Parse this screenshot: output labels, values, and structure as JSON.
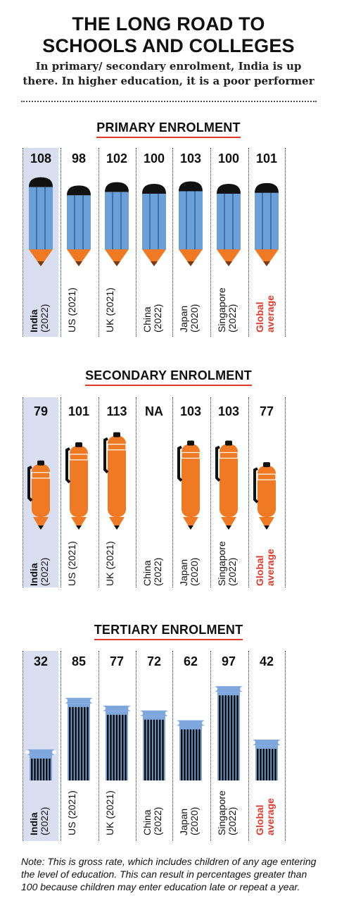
{
  "header": {
    "title_line1": "THE LONG ROAD TO",
    "title_line2": "SCHOOLS AND COLLEGES",
    "subtitle_line1": "In primary/ secondary enrolment, India is up",
    "subtitle_line2": "there. In higher education, it is a poor performer"
  },
  "colors": {
    "pencil_blue": "#6a9fd8",
    "pencil_orange": "#f07a24",
    "cap_black": "#111111",
    "highlight": "#d9def0",
    "accent_red": "#e03a2b",
    "pillar_blue": "#7da7dd"
  },
  "chart_data": [
    {
      "type": "bar",
      "title": "PRIMARY ENROLMENT",
      "icon": "pencil",
      "categories": [
        {
          "name": "India",
          "year": "(2022)"
        },
        {
          "name": "US (2021)",
          "year": ""
        },
        {
          "name": "UK (2021)",
          "year": ""
        },
        {
          "name": "China",
          "year": "(2022)"
        },
        {
          "name": "Japan",
          "year": "(2020)"
        },
        {
          "name": "Singapore",
          "year": "(2022)"
        },
        {
          "name": "Global",
          "year": "average"
        }
      ],
      "values": [
        108,
        98,
        102,
        100,
        103,
        100,
        101
      ],
      "value_labels": [
        "108",
        "98",
        "102",
        "100",
        "103",
        "100",
        "101"
      ],
      "highlight_index": 0
    },
    {
      "type": "bar",
      "title": "SECONDARY ENROLMENT",
      "icon": "pen",
      "categories": [
        {
          "name": "India",
          "year": "(2022)"
        },
        {
          "name": "US (2021)",
          "year": ""
        },
        {
          "name": "UK (2021)",
          "year": ""
        },
        {
          "name": "China",
          "year": "(2022)"
        },
        {
          "name": "Japan",
          "year": "(2020)"
        },
        {
          "name": "Singapore",
          "year": "(2022)"
        },
        {
          "name": "Global",
          "year": "average"
        }
      ],
      "values": [
        79,
        101,
        113,
        null,
        103,
        103,
        77
      ],
      "value_labels": [
        "79",
        "101",
        "113",
        "NA",
        "103",
        "103",
        "77"
      ],
      "highlight_index": 0
    },
    {
      "type": "bar",
      "title": "TERTIARY ENROLMENT",
      "icon": "pillar",
      "categories": [
        {
          "name": "India",
          "year": "(2022)"
        },
        {
          "name": "US (2021)",
          "year": ""
        },
        {
          "name": "UK (2021)",
          "year": ""
        },
        {
          "name": "China",
          "year": "(2022)"
        },
        {
          "name": "Japan",
          "year": "(2020)"
        },
        {
          "name": "Singapore",
          "year": "(2022)"
        },
        {
          "name": "Global",
          "year": "average"
        }
      ],
      "values": [
        32,
        85,
        77,
        72,
        62,
        97,
        42
      ],
      "value_labels": [
        "32",
        "85",
        "77",
        "72",
        "62",
        "97",
        "42"
      ],
      "highlight_index": 0
    }
  ],
  "note": "Note: This is gross rate, which includes children of any age entering the level of education. This can result in percentages greater than 100 because children may enter education late or repeat a year."
}
